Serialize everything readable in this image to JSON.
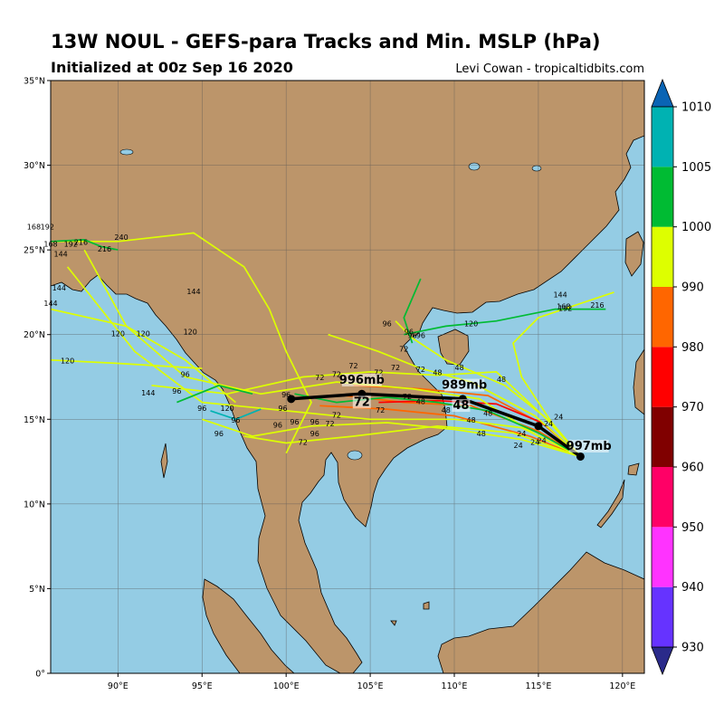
{
  "header": {
    "title": "13W NOUL - GEFS-para Tracks and Min. MSLP (hPa)",
    "subtitle": "Initialized at 00z Sep 16 2020",
    "credit": "Levi Cowan - tropicaltidbits.com"
  },
  "map": {
    "lon_range": [
      86,
      121.3
    ],
    "lat_range": [
      0,
      35
    ],
    "lon_ticks": [
      "90°E",
      "95°E",
      "100°E",
      "105°E",
      "110°E",
      "115°E",
      "120°E"
    ],
    "lat_ticks": [
      "0°",
      "5°N",
      "10°N",
      "15°N",
      "20°N",
      "25°N",
      "30°N",
      "35°N"
    ],
    "colors": {
      "ocean": "#94cce4",
      "land": "#bc956a",
      "coast": "#000000",
      "grid": "#555555"
    }
  },
  "colorbar": {
    "labels": [
      "930",
      "940",
      "950",
      "960",
      "970",
      "980",
      "990",
      "1000",
      "1005",
      "1010"
    ],
    "colors": [
      "#6633ff",
      "#ff33ff",
      "#ff0066",
      "#800000",
      "#ff0000",
      "#ff6600",
      "#ddff00",
      "#00bb33",
      "#00b2b2"
    ],
    "extend_low": "#2a2a8a",
    "extend_high": "#0a64b4"
  },
  "mean_track": {
    "points": [
      [
        117.5,
        12.8
      ],
      [
        115.0,
        14.6
      ],
      [
        110.5,
        16.2
      ],
      [
        104.5,
        16.5
      ],
      [
        100.3,
        16.2
      ]
    ],
    "labels": [
      {
        "text": "997mb",
        "lon": 118.0,
        "lat": 13.2
      },
      {
        "text": "989mb",
        "lon": 110.6,
        "lat": 16.8
      },
      {
        "text": "48",
        "lon": 110.4,
        "lat": 15.6
      },
      {
        "text": "996mb",
        "lon": 104.5,
        "lat": 17.1
      },
      {
        "text": "72",
        "lon": 104.5,
        "lat": 15.8
      }
    ]
  },
  "ensemble_tracks": [
    {
      "color": "#ff6600",
      "points": [
        [
          117.5,
          12.8
        ],
        [
          115.0,
          14.3
        ],
        [
          111.0,
          15.8
        ],
        [
          107.0,
          16.0
        ],
        [
          103.5,
          16.4
        ]
      ]
    },
    {
      "color": "#ff6600",
      "points": [
        [
          117.5,
          12.8
        ],
        [
          114.5,
          14.0
        ],
        [
          110.0,
          15.2
        ],
        [
          106.0,
          15.6
        ],
        [
          102.0,
          15.8
        ]
      ]
    },
    {
      "color": "#ff6600",
      "points": [
        [
          117.5,
          12.8
        ],
        [
          115.5,
          14.6
        ],
        [
          112.0,
          16.4
        ],
        [
          108.0,
          16.8
        ],
        [
          104.0,
          17.0
        ]
      ]
    },
    {
      "color": "#ff0000",
      "points": [
        [
          117.5,
          12.8
        ],
        [
          115.2,
          14.8
        ],
        [
          112.5,
          15.9
        ],
        [
          109.0,
          16.1
        ],
        [
          105.5,
          16.0
        ]
      ]
    },
    {
      "color": "#ddff00",
      "points": [
        [
          117.5,
          12.8
        ],
        [
          114.0,
          13.8
        ],
        [
          110.0,
          14.4
        ],
        [
          106.0,
          14.8
        ],
        [
          101.5,
          14.6
        ],
        [
          98.0,
          14.0
        ],
        [
          95.0,
          15.0
        ]
      ]
    },
    {
      "color": "#ddff00",
      "points": [
        [
          117.5,
          12.8
        ],
        [
          114.8,
          15.2
        ],
        [
          111.0,
          17.2
        ],
        [
          108.0,
          18.0
        ],
        [
          105.5,
          19.0
        ],
        [
          102.5,
          20.0
        ]
      ]
    },
    {
      "color": "#ddff00",
      "points": [
        [
          117.5,
          12.8
        ],
        [
          115.5,
          15.0
        ],
        [
          112.5,
          17.8
        ],
        [
          109.0,
          17.6
        ],
        [
          105.0,
          17.8
        ],
        [
          101.0,
          17.5
        ],
        [
          96.5,
          16.5
        ],
        [
          92.0,
          17.0
        ]
      ]
    },
    {
      "color": "#ddff00",
      "points": [
        [
          117.5,
          12.8
        ],
        [
          114.0,
          14.5
        ],
        [
          110.0,
          15.0
        ],
        [
          105.0,
          15.0
        ],
        [
          100.0,
          15.5
        ],
        [
          95.0,
          16.0
        ],
        [
          91.0,
          19.0
        ],
        [
          87.0,
          24.0
        ]
      ]
    },
    {
      "color": "#ddff00",
      "points": [
        [
          117.5,
          12.8
        ],
        [
          115.0,
          14.0
        ],
        [
          111.5,
          16.2
        ],
        [
          107.5,
          16.8
        ],
        [
          103.0,
          17.2
        ],
        [
          98.5,
          16.5
        ],
        [
          94.0,
          17.5
        ],
        [
          90.5,
          20.5
        ],
        [
          88.0,
          25.0
        ]
      ]
    },
    {
      "color": "#ddff00",
      "points": [
        [
          117.5,
          12.8
        ],
        [
          116.0,
          14.5
        ],
        [
          114.0,
          17.5
        ],
        [
          113.5,
          19.5
        ],
        [
          115.0,
          21.0
        ],
        [
          119.5,
          22.5
        ]
      ]
    },
    {
      "color": "#ddff00",
      "points": [
        [
          117.5,
          12.8
        ],
        [
          115.8,
          14.8
        ],
        [
          113.0,
          17.0
        ],
        [
          109.5,
          18.5
        ],
        [
          107.5,
          19.8
        ],
        [
          106.5,
          20.8
        ]
      ]
    },
    {
      "color": "#ddff00",
      "points": [
        [
          117.5,
          12.8
        ],
        [
          113.5,
          14.2
        ],
        [
          109.0,
          14.6
        ],
        [
          104.0,
          14.0
        ],
        [
          100.0,
          13.6
        ],
        [
          97.5,
          14.0
        ]
      ]
    },
    {
      "color": "#ddff00",
      "points": [
        [
          100.0,
          13.0
        ],
        [
          101.5,
          16.0
        ],
        [
          100.0,
          19.0
        ],
        [
          99.0,
          21.5
        ],
        [
          97.5,
          24.0
        ],
        [
          94.5,
          26.0
        ],
        [
          90.0,
          25.5
        ],
        [
          86.0,
          25.5
        ]
      ]
    },
    {
      "color": "#ddff00",
      "points": [
        [
          97.0,
          16.0
        ],
        [
          94.0,
          18.5
        ],
        [
          90.5,
          20.5
        ],
        [
          86.0,
          21.5
        ]
      ]
    },
    {
      "color": "#ddff00",
      "points": [
        [
          95.0,
          18.0
        ],
        [
          90.0,
          18.3
        ],
        [
          86.0,
          18.5
        ]
      ]
    },
    {
      "color": "#00bb33",
      "points": [
        [
          117.5,
          12.8
        ],
        [
          115.0,
          14.2
        ],
        [
          112.0,
          15.5
        ],
        [
          109.0,
          16.0
        ],
        [
          106.0,
          16.3
        ],
        [
          103.0,
          16.0
        ],
        [
          100.5,
          16.5
        ]
      ]
    },
    {
      "color": "#00bb33",
      "points": [
        [
          107.5,
          19.5
        ],
        [
          107.0,
          21.0
        ],
        [
          108.0,
          23.3
        ]
      ]
    },
    {
      "color": "#00bb33",
      "points": [
        [
          107.0,
          20.0
        ],
        [
          109.5,
          20.5
        ],
        [
          112.5,
          20.8
        ],
        [
          116.0,
          21.5
        ],
        [
          119.0,
          21.5
        ]
      ]
    },
    {
      "color": "#00bb33",
      "points": [
        [
          86.0,
          25.5
        ],
        [
          88.0,
          25.6
        ],
        [
          89.0,
          25.2
        ],
        [
          90.0,
          25.0
        ]
      ]
    },
    {
      "color": "#00bb33",
      "points": [
        [
          98.0,
          16.5
        ],
        [
          96.0,
          17.0
        ],
        [
          93.5,
          16.0
        ]
      ]
    },
    {
      "color": "#00b2b2",
      "points": [
        [
          98.5,
          15.6
        ],
        [
          97.0,
          15.0
        ],
        [
          95.5,
          15.5
        ]
      ]
    }
  ],
  "hour_labels": [
    {
      "text": "24",
      "lon": 114.8,
      "lat": 13.5
    },
    {
      "text": "24",
      "lon": 115.6,
      "lat": 14.6
    },
    {
      "text": "24",
      "lon": 116.2,
      "lat": 15.0
    },
    {
      "text": "24",
      "lon": 115.2,
      "lat": 13.6
    },
    {
      "text": "24",
      "lon": 114.0,
      "lat": 14.0
    },
    {
      "text": "24",
      "lon": 113.8,
      "lat": 13.3
    },
    {
      "text": "48",
      "lon": 112.0,
      "lat": 15.2
    },
    {
      "text": "48",
      "lon": 111.0,
      "lat": 14.8
    },
    {
      "text": "48",
      "lon": 109.5,
      "lat": 15.4
    },
    {
      "text": "48",
      "lon": 108.0,
      "lat": 15.9
    },
    {
      "text": "48",
      "lon": 109.0,
      "lat": 17.6
    },
    {
      "text": "48",
      "lon": 110.3,
      "lat": 17.9
    },
    {
      "text": "48",
      "lon": 112.8,
      "lat": 17.2
    },
    {
      "text": "48",
      "lon": 111.6,
      "lat": 14.0
    },
    {
      "text": "72",
      "lon": 103.0,
      "lat": 17.5
    },
    {
      "text": "72",
      "lon": 102.0,
      "lat": 17.3
    },
    {
      "text": "72",
      "lon": 105.5,
      "lat": 17.6
    },
    {
      "text": "72",
      "lon": 106.5,
      "lat": 17.9
    },
    {
      "text": "72",
      "lon": 107.2,
      "lat": 16.2
    },
    {
      "text": "72",
      "lon": 105.6,
      "lat": 15.4
    },
    {
      "text": "72",
      "lon": 103.0,
      "lat": 15.1
    },
    {
      "text": "72",
      "lon": 102.6,
      "lat": 14.6
    },
    {
      "text": "72",
      "lon": 104.0,
      "lat": 18.0
    },
    {
      "text": "72",
      "lon": 101.0,
      "lat": 13.5
    },
    {
      "text": "72",
      "lon": 107.0,
      "lat": 19.0
    },
    {
      "text": "72",
      "lon": 108.0,
      "lat": 17.8
    },
    {
      "text": "96",
      "lon": 100.0,
      "lat": 16.3
    },
    {
      "text": "96",
      "lon": 99.8,
      "lat": 15.5
    },
    {
      "text": "96",
      "lon": 100.5,
      "lat": 14.7
    },
    {
      "text": "96",
      "lon": 101.7,
      "lat": 14.7
    },
    {
      "text": "96",
      "lon": 101.7,
      "lat": 14.0
    },
    {
      "text": "96",
      "lon": 99.5,
      "lat": 14.5
    },
    {
      "text": "96",
      "lon": 97.0,
      "lat": 14.8
    },
    {
      "text": "96",
      "lon": 95.0,
      "lat": 15.5
    },
    {
      "text": "96",
      "lon": 93.5,
      "lat": 16.5
    },
    {
      "text": "96",
      "lon": 94.0,
      "lat": 17.5
    },
    {
      "text": "96",
      "lon": 96.0,
      "lat": 14.0
    },
    {
      "text": "96",
      "lon": 107.5,
      "lat": 19.8
    },
    {
      "text": "96",
      "lon": 106.0,
      "lat": 20.5
    },
    {
      "text": "96",
      "lon": 107.3,
      "lat": 20.0
    },
    {
      "text": "96",
      "lon": 108.0,
      "lat": 19.8
    },
    {
      "text": "120",
      "lon": 96.5,
      "lat": 15.5
    },
    {
      "text": "120",
      "lon": 90.0,
      "lat": 19.9
    },
    {
      "text": "120",
      "lon": 91.5,
      "lat": 19.9
    },
    {
      "text": "120",
      "lon": 94.3,
      "lat": 20.0
    },
    {
      "text": "120",
      "lon": 87.0,
      "lat": 18.3
    },
    {
      "text": "120",
      "lon": 111.0,
      "lat": 20.5
    },
    {
      "text": "144",
      "lon": 94.5,
      "lat": 22.4
    },
    {
      "text": "144",
      "lon": 86.5,
      "lat": 22.6
    },
    {
      "text": "144",
      "lon": 86.0,
      "lat": 21.7
    },
    {
      "text": "144",
      "lon": 86.6,
      "lat": 24.6
    },
    {
      "text": "144",
      "lon": 91.8,
      "lat": 16.4
    },
    {
      "text": "144",
      "lon": 116.3,
      "lat": 22.2
    },
    {
      "text": "168",
      "lon": 86.0,
      "lat": 25.2
    },
    {
      "text": "168",
      "lon": 85.0,
      "lat": 26.2
    },
    {
      "text": "168",
      "lon": 116.5,
      "lat": 21.5
    },
    {
      "text": "192",
      "lon": 85.8,
      "lat": 26.2
    },
    {
      "text": "192",
      "lon": 87.2,
      "lat": 25.2
    },
    {
      "text": "192",
      "lon": 116.6,
      "lat": 21.4
    },
    {
      "text": "216",
      "lon": 87.8,
      "lat": 25.3
    },
    {
      "text": "216",
      "lon": 89.2,
      "lat": 24.9
    },
    {
      "text": "216",
      "lon": 118.5,
      "lat": 21.6
    },
    {
      "text": "240",
      "lon": 90.2,
      "lat": 25.6
    }
  ]
}
